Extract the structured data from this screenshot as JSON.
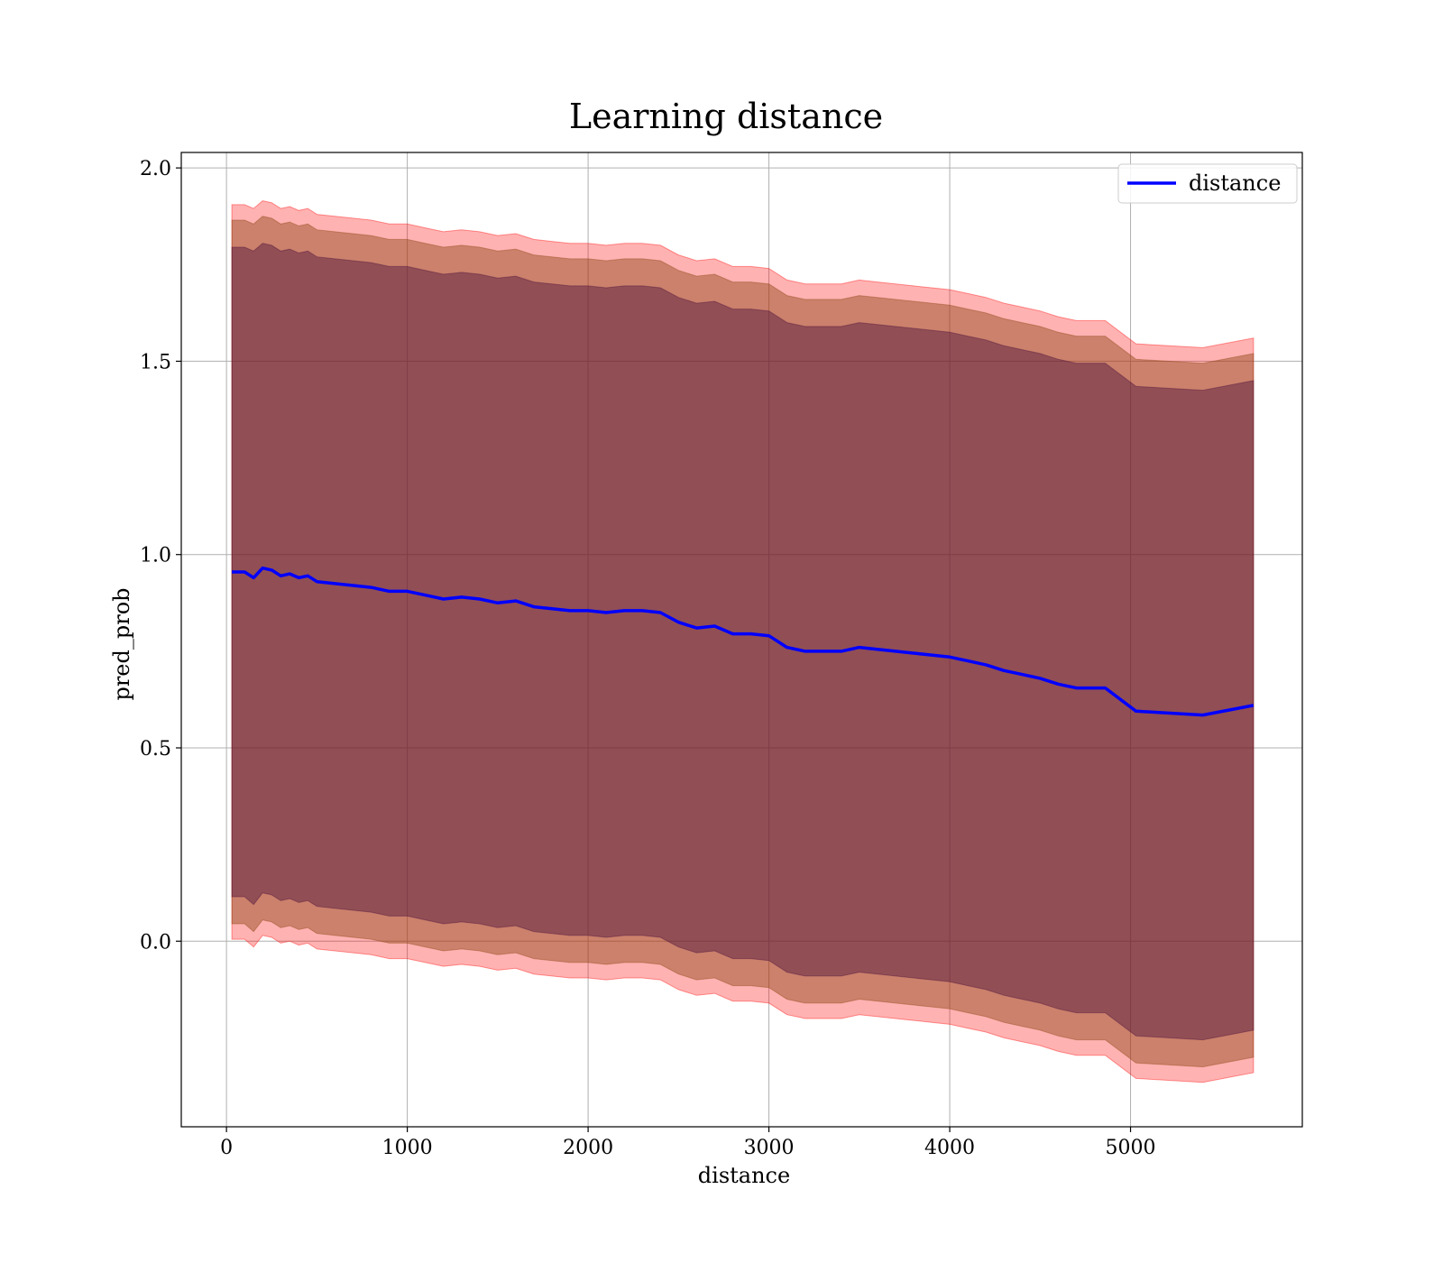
{
  "chart_data": {
    "type": "line",
    "title": "Learning distance",
    "xlabel": "distance",
    "ylabel": "pred_prob",
    "xlim": [
      -250,
      5950
    ],
    "ylim": [
      -0.48,
      2.04
    ],
    "xticks": [
      "0",
      "1000",
      "2000",
      "3000",
      "4000",
      "5000"
    ],
    "xtick_values": [
      0,
      1000,
      2000,
      3000,
      4000,
      5000
    ],
    "yticks": [
      "0.0",
      "0.5",
      "1.0",
      "1.5",
      "2.0"
    ],
    "ytick_values": [
      0.0,
      0.5,
      1.0,
      1.5,
      2.0
    ],
    "grid": true,
    "legend": {
      "position": "upper right",
      "entries": [
        "distance"
      ]
    },
    "colors": {
      "line": "#0000ff",
      "outer_band": "#ff0000",
      "middle_band": "#8b4513",
      "inner_band": "#4b0f3c",
      "grid": "#b0b0b0"
    },
    "series": [
      {
        "name": "distance",
        "x": [
          30,
          100,
          150,
          200,
          250,
          300,
          350,
          400,
          450,
          500,
          600,
          700,
          800,
          900,
          1000,
          1100,
          1200,
          1300,
          1400,
          1500,
          1600,
          1700,
          1800,
          1900,
          2000,
          2100,
          2200,
          2300,
          2400,
          2500,
          2600,
          2700,
          2800,
          2900,
          3000,
          3100,
          3200,
          3300,
          3400,
          3500,
          3600,
          3700,
          3800,
          3900,
          4000,
          4100,
          4200,
          4300,
          4400,
          4500,
          4600,
          4700,
          4860,
          5030,
          5400,
          5680
        ],
        "y": [
          0.955,
          0.955,
          0.94,
          0.965,
          0.96,
          0.945,
          0.95,
          0.94,
          0.945,
          0.93,
          0.925,
          0.92,
          0.915,
          0.905,
          0.905,
          0.895,
          0.885,
          0.89,
          0.885,
          0.875,
          0.88,
          0.865,
          0.86,
          0.855,
          0.855,
          0.85,
          0.855,
          0.855,
          0.85,
          0.825,
          0.81,
          0.815,
          0.795,
          0.795,
          0.79,
          0.76,
          0.75,
          0.75,
          0.75,
          0.76,
          0.755,
          0.75,
          0.745,
          0.74,
          0.735,
          0.725,
          0.715,
          0.7,
          0.69,
          0.68,
          0.665,
          0.655,
          0.655,
          0.595,
          0.585,
          0.61
        ]
      }
    ],
    "bands": [
      {
        "name": "outer",
        "x": [
          30,
          100,
          150,
          200,
          250,
          300,
          350,
          400,
          450,
          500,
          600,
          700,
          800,
          900,
          1000,
          1100,
          1200,
          1300,
          1400,
          1500,
          1600,
          1700,
          1800,
          1900,
          2000,
          2100,
          2200,
          2300,
          2400,
          2500,
          2600,
          2700,
          2800,
          2900,
          3000,
          3100,
          3200,
          3300,
          3400,
          3500,
          3600,
          3700,
          3800,
          3900,
          4000,
          4100,
          4200,
          4300,
          4400,
          4500,
          4600,
          4700,
          4860,
          5030,
          5400,
          5680
        ],
        "upper": [
          1.905,
          1.905,
          1.895,
          1.915,
          1.91,
          1.895,
          1.9,
          1.89,
          1.895,
          1.88,
          1.875,
          1.87,
          1.865,
          1.855,
          1.855,
          1.845,
          1.835,
          1.84,
          1.835,
          1.825,
          1.83,
          1.815,
          1.81,
          1.805,
          1.805,
          1.8,
          1.805,
          1.805,
          1.8,
          1.775,
          1.76,
          1.765,
          1.745,
          1.745,
          1.74,
          1.71,
          1.7,
          1.7,
          1.7,
          1.71,
          1.705,
          1.7,
          1.695,
          1.69,
          1.685,
          1.675,
          1.665,
          1.65,
          1.64,
          1.63,
          1.615,
          1.605,
          1.605,
          1.545,
          1.535,
          1.56
        ],
        "lower": [
          0.005,
          0.005,
          -0.015,
          0.015,
          0.01,
          -0.005,
          0.0,
          -0.01,
          -0.005,
          -0.02,
          -0.025,
          -0.03,
          -0.035,
          -0.045,
          -0.045,
          -0.055,
          -0.065,
          -0.06,
          -0.065,
          -0.075,
          -0.07,
          -0.085,
          -0.09,
          -0.095,
          -0.095,
          -0.1,
          -0.095,
          -0.095,
          -0.1,
          -0.125,
          -0.14,
          -0.135,
          -0.155,
          -0.155,
          -0.16,
          -0.19,
          -0.2,
          -0.2,
          -0.2,
          -0.19,
          -0.195,
          -0.2,
          -0.205,
          -0.21,
          -0.215,
          -0.225,
          -0.235,
          -0.25,
          -0.26,
          -0.27,
          -0.285,
          -0.295,
          -0.295,
          -0.355,
          -0.365,
          -0.34
        ]
      },
      {
        "name": "middle",
        "x": [
          30,
          100,
          150,
          200,
          250,
          300,
          350,
          400,
          450,
          500,
          600,
          700,
          800,
          900,
          1000,
          1100,
          1200,
          1300,
          1400,
          1500,
          1600,
          1700,
          1800,
          1900,
          2000,
          2100,
          2200,
          2300,
          2400,
          2500,
          2600,
          2700,
          2800,
          2900,
          3000,
          3100,
          3200,
          3300,
          3400,
          3500,
          3600,
          3700,
          3800,
          3900,
          4000,
          4100,
          4200,
          4300,
          4400,
          4500,
          4600,
          4700,
          4860,
          5030,
          5400,
          5680
        ],
        "upper": [
          1.865,
          1.865,
          1.855,
          1.875,
          1.87,
          1.855,
          1.86,
          1.85,
          1.855,
          1.84,
          1.835,
          1.83,
          1.825,
          1.815,
          1.815,
          1.805,
          1.795,
          1.8,
          1.795,
          1.785,
          1.79,
          1.775,
          1.77,
          1.765,
          1.765,
          1.76,
          1.765,
          1.765,
          1.76,
          1.735,
          1.72,
          1.725,
          1.705,
          1.705,
          1.7,
          1.67,
          1.66,
          1.66,
          1.66,
          1.67,
          1.665,
          1.66,
          1.655,
          1.65,
          1.645,
          1.635,
          1.625,
          1.61,
          1.6,
          1.59,
          1.575,
          1.565,
          1.565,
          1.505,
          1.495,
          1.52
        ],
        "lower": [
          0.045,
          0.045,
          0.025,
          0.055,
          0.05,
          0.035,
          0.04,
          0.03,
          0.035,
          0.02,
          0.015,
          0.01,
          0.005,
          -0.005,
          -0.005,
          -0.015,
          -0.025,
          -0.02,
          -0.025,
          -0.035,
          -0.03,
          -0.045,
          -0.05,
          -0.055,
          -0.055,
          -0.06,
          -0.055,
          -0.055,
          -0.06,
          -0.085,
          -0.1,
          -0.095,
          -0.115,
          -0.115,
          -0.12,
          -0.15,
          -0.16,
          -0.16,
          -0.16,
          -0.15,
          -0.155,
          -0.16,
          -0.165,
          -0.17,
          -0.175,
          -0.185,
          -0.195,
          -0.21,
          -0.22,
          -0.23,
          -0.245,
          -0.255,
          -0.255,
          -0.315,
          -0.325,
          -0.3
        ]
      },
      {
        "name": "inner",
        "x": [
          30,
          100,
          150,
          200,
          250,
          300,
          350,
          400,
          450,
          500,
          600,
          700,
          800,
          900,
          1000,
          1100,
          1200,
          1300,
          1400,
          1500,
          1600,
          1700,
          1800,
          1900,
          2000,
          2100,
          2200,
          2300,
          2400,
          2500,
          2600,
          2700,
          2800,
          2900,
          3000,
          3100,
          3200,
          3300,
          3400,
          3500,
          3600,
          3700,
          3800,
          3900,
          4000,
          4100,
          4200,
          4300,
          4400,
          4500,
          4600,
          4700,
          4860,
          5030,
          5400,
          5680
        ],
        "upper": [
          1.795,
          1.795,
          1.785,
          1.805,
          1.8,
          1.785,
          1.79,
          1.78,
          1.785,
          1.77,
          1.765,
          1.76,
          1.755,
          1.745,
          1.745,
          1.735,
          1.725,
          1.73,
          1.725,
          1.715,
          1.72,
          1.705,
          1.7,
          1.695,
          1.695,
          1.69,
          1.695,
          1.695,
          1.69,
          1.665,
          1.65,
          1.655,
          1.635,
          1.635,
          1.63,
          1.6,
          1.59,
          1.59,
          1.59,
          1.6,
          1.595,
          1.59,
          1.585,
          1.58,
          1.575,
          1.565,
          1.555,
          1.54,
          1.53,
          1.52,
          1.505,
          1.495,
          1.495,
          1.435,
          1.425,
          1.45
        ],
        "lower": [
          0.115,
          0.115,
          0.095,
          0.125,
          0.12,
          0.105,
          0.11,
          0.1,
          0.105,
          0.09,
          0.085,
          0.08,
          0.075,
          0.065,
          0.065,
          0.055,
          0.045,
          0.05,
          0.045,
          0.035,
          0.04,
          0.025,
          0.02,
          0.015,
          0.015,
          0.01,
          0.015,
          0.015,
          0.01,
          -0.015,
          -0.03,
          -0.025,
          -0.045,
          -0.045,
          -0.05,
          -0.08,
          -0.09,
          -0.09,
          -0.09,
          -0.08,
          -0.085,
          -0.09,
          -0.095,
          -0.1,
          -0.105,
          -0.115,
          -0.125,
          -0.14,
          -0.15,
          -0.16,
          -0.175,
          -0.185,
          -0.185,
          -0.245,
          -0.255,
          -0.23
        ]
      }
    ]
  }
}
